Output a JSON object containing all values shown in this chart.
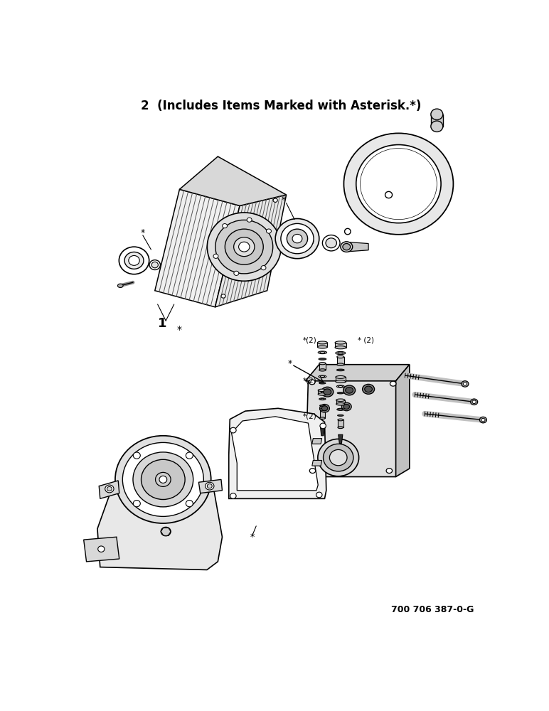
{
  "title": "2  (Includes Items Marked with Asterisk.*)",
  "footnote": "700 706 387-0-G",
  "bg_color": "#ffffff",
  "title_fontsize": 12,
  "title_fontweight": "bold",
  "footnote_fontsize": 9,
  "footnote_fontweight": "bold"
}
